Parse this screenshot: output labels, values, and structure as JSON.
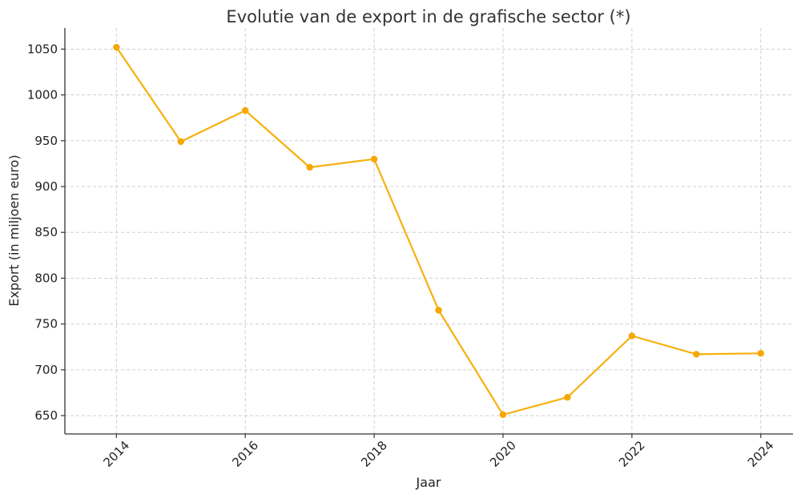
{
  "chart_data": {
    "type": "line",
    "title": "Evolutie van de export in de grafische sector (*)",
    "xlabel": "Jaar",
    "ylabel": "Export (in miljoen euro)",
    "x": [
      2014,
      2015,
      2016,
      2017,
      2018,
      2019,
      2020,
      2021,
      2022,
      2023,
      2024
    ],
    "series": [
      {
        "values": [
          1052,
          949,
          983,
          921,
          930,
          765,
          651,
          670,
          737,
          717,
          718
        ]
      }
    ],
    "xticks": [
      "2014",
      "2016",
      "2018",
      "2020",
      "2022",
      "2024"
    ],
    "yticks": [
      "650",
      "700",
      "750",
      "800",
      "850",
      "900",
      "950",
      "1000",
      "1050"
    ],
    "xlim": [
      2013.2,
      2024.5
    ],
    "ylim": [
      630,
      1073
    ],
    "grid": true,
    "legend": "none",
    "colors": {
      "line": "#F5B10F",
      "marker": "#F5A800",
      "grid": "#cfcfcf",
      "axis": "#333333"
    }
  }
}
